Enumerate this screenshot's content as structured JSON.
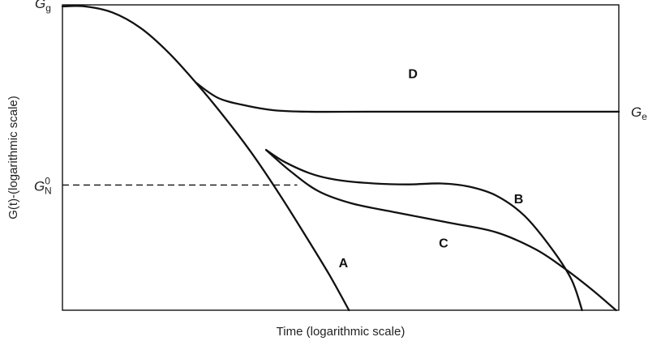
{
  "chart_data": {
    "type": "line",
    "xlabel": "Time (logarithmic scale)",
    "ylabel": "G(t)-(logarithmic scale)",
    "x_scale": "logarithmic",
    "y_scale": "logarithmic",
    "xlim": [
      0,
      1
    ],
    "ylim": [
      0,
      1
    ],
    "grid": false,
    "legend": "none",
    "tick_labels": {
      "g_glass": {
        "main": "G",
        "sub": "g"
      },
      "g_equilibrium": {
        "main": "G",
        "sub": "e"
      },
      "g_plateau": {
        "main": "G",
        "sub": "N",
        "sup": "0"
      }
    },
    "reference_lines": [
      {
        "id": "plateau",
        "style": "dashed",
        "y": 0.41,
        "x": [
          0,
          0.422
        ]
      }
    ],
    "series": [
      {
        "id": "A",
        "label": "A",
        "label_pos": [
          0.505,
          0.14
        ],
        "points": [
          [
            0,
            0.995
          ],
          [
            0.04,
            0.995
          ],
          [
            0.09,
            0.975
          ],
          [
            0.14,
            0.925
          ],
          [
            0.19,
            0.845
          ],
          [
            0.24,
            0.745
          ],
          [
            0.29,
            0.635
          ],
          [
            0.34,
            0.515
          ],
          [
            0.39,
            0.38
          ],
          [
            0.44,
            0.235
          ],
          [
            0.48,
            0.115
          ],
          [
            0.515,
            0.0
          ]
        ]
      },
      {
        "id": "B",
        "label": "B",
        "label_pos": [
          0.82,
          0.35
        ],
        "points": [
          [
            0.366,
            0.525
          ],
          [
            0.4,
            0.485
          ],
          [
            0.45,
            0.445
          ],
          [
            0.5,
            0.425
          ],
          [
            0.56,
            0.415
          ],
          [
            0.62,
            0.412
          ],
          [
            0.68,
            0.415
          ],
          [
            0.73,
            0.405
          ],
          [
            0.78,
            0.375
          ],
          [
            0.83,
            0.31
          ],
          [
            0.88,
            0.2
          ],
          [
            0.915,
            0.1
          ],
          [
            0.934,
            0.0
          ]
        ]
      },
      {
        "id": "C",
        "label": "C",
        "label_pos": [
          0.685,
          0.205
        ],
        "points": [
          [
            0.366,
            0.525
          ],
          [
            0.41,
            0.455
          ],
          [
            0.46,
            0.39
          ],
          [
            0.52,
            0.35
          ],
          [
            0.6,
            0.32
          ],
          [
            0.7,
            0.285
          ],
          [
            0.78,
            0.255
          ],
          [
            0.85,
            0.2
          ],
          [
            0.9,
            0.14
          ],
          [
            0.95,
            0.07
          ],
          [
            0.995,
            0.0
          ]
        ]
      },
      {
        "id": "D",
        "label": "D",
        "label_pos": [
          0.63,
          0.76
        ],
        "points": [
          [
            0.24,
            0.745
          ],
          [
            0.28,
            0.695
          ],
          [
            0.33,
            0.67
          ],
          [
            0.38,
            0.655
          ],
          [
            0.44,
            0.65
          ],
          [
            0.55,
            0.65
          ],
          [
            0.75,
            0.65
          ],
          [
            1.0,
            0.65
          ]
        ]
      }
    ],
    "colors": {
      "line": "#111111",
      "frame": "#111111",
      "text": "#222222"
    }
  }
}
